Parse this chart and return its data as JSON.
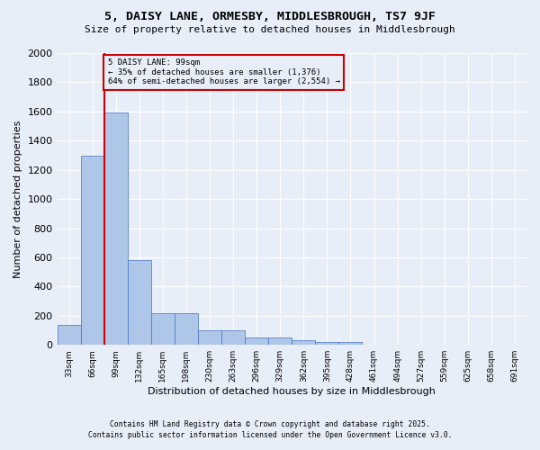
{
  "title_line1": "5, DAISY LANE, ORMESBY, MIDDLESBROUGH, TS7 9JF",
  "title_line2": "Size of property relative to detached houses in Middlesbrough",
  "xlabel": "Distribution of detached houses by size in Middlesbrough",
  "ylabel": "Number of detached properties",
  "bar_values": [
    140,
    1295,
    1590,
    580,
    215,
    215,
    100,
    100,
    50,
    50,
    30,
    20,
    20,
    0,
    0,
    0,
    0,
    0,
    0
  ],
  "bin_labels": [
    "33sqm",
    "66sqm",
    "99sqm",
    "132sqm",
    "165sqm",
    "198sqm",
    "230sqm",
    "263sqm",
    "296sqm",
    "329sqm",
    "362sqm",
    "395sqm",
    "428sqm",
    "461sqm",
    "494sqm",
    "527sqm",
    "559sqm",
    "625sqm",
    "658sqm",
    "691sqm"
  ],
  "bar_color": "#aec6e8",
  "bar_edge_color": "#4472c4",
  "bg_color": "#e8eef8",
  "grid_color": "#ffffff",
  "vline_x": 2,
  "vline_color": "#cc0000",
  "annotation_text": "5 DAISY LANE: 99sqm\n← 35% of detached houses are smaller (1,376)\n64% of semi-detached houses are larger (2,554) →",
  "annotation_box_color": "#cc0000",
  "ylim": [
    0,
    2000
  ],
  "yticks": [
    0,
    200,
    400,
    600,
    800,
    1000,
    1200,
    1400,
    1600,
    1800,
    2000
  ],
  "footer_line1": "Contains HM Land Registry data © Crown copyright and database right 2025.",
  "footer_line2": "Contains public sector information licensed under the Open Government Licence v3.0."
}
